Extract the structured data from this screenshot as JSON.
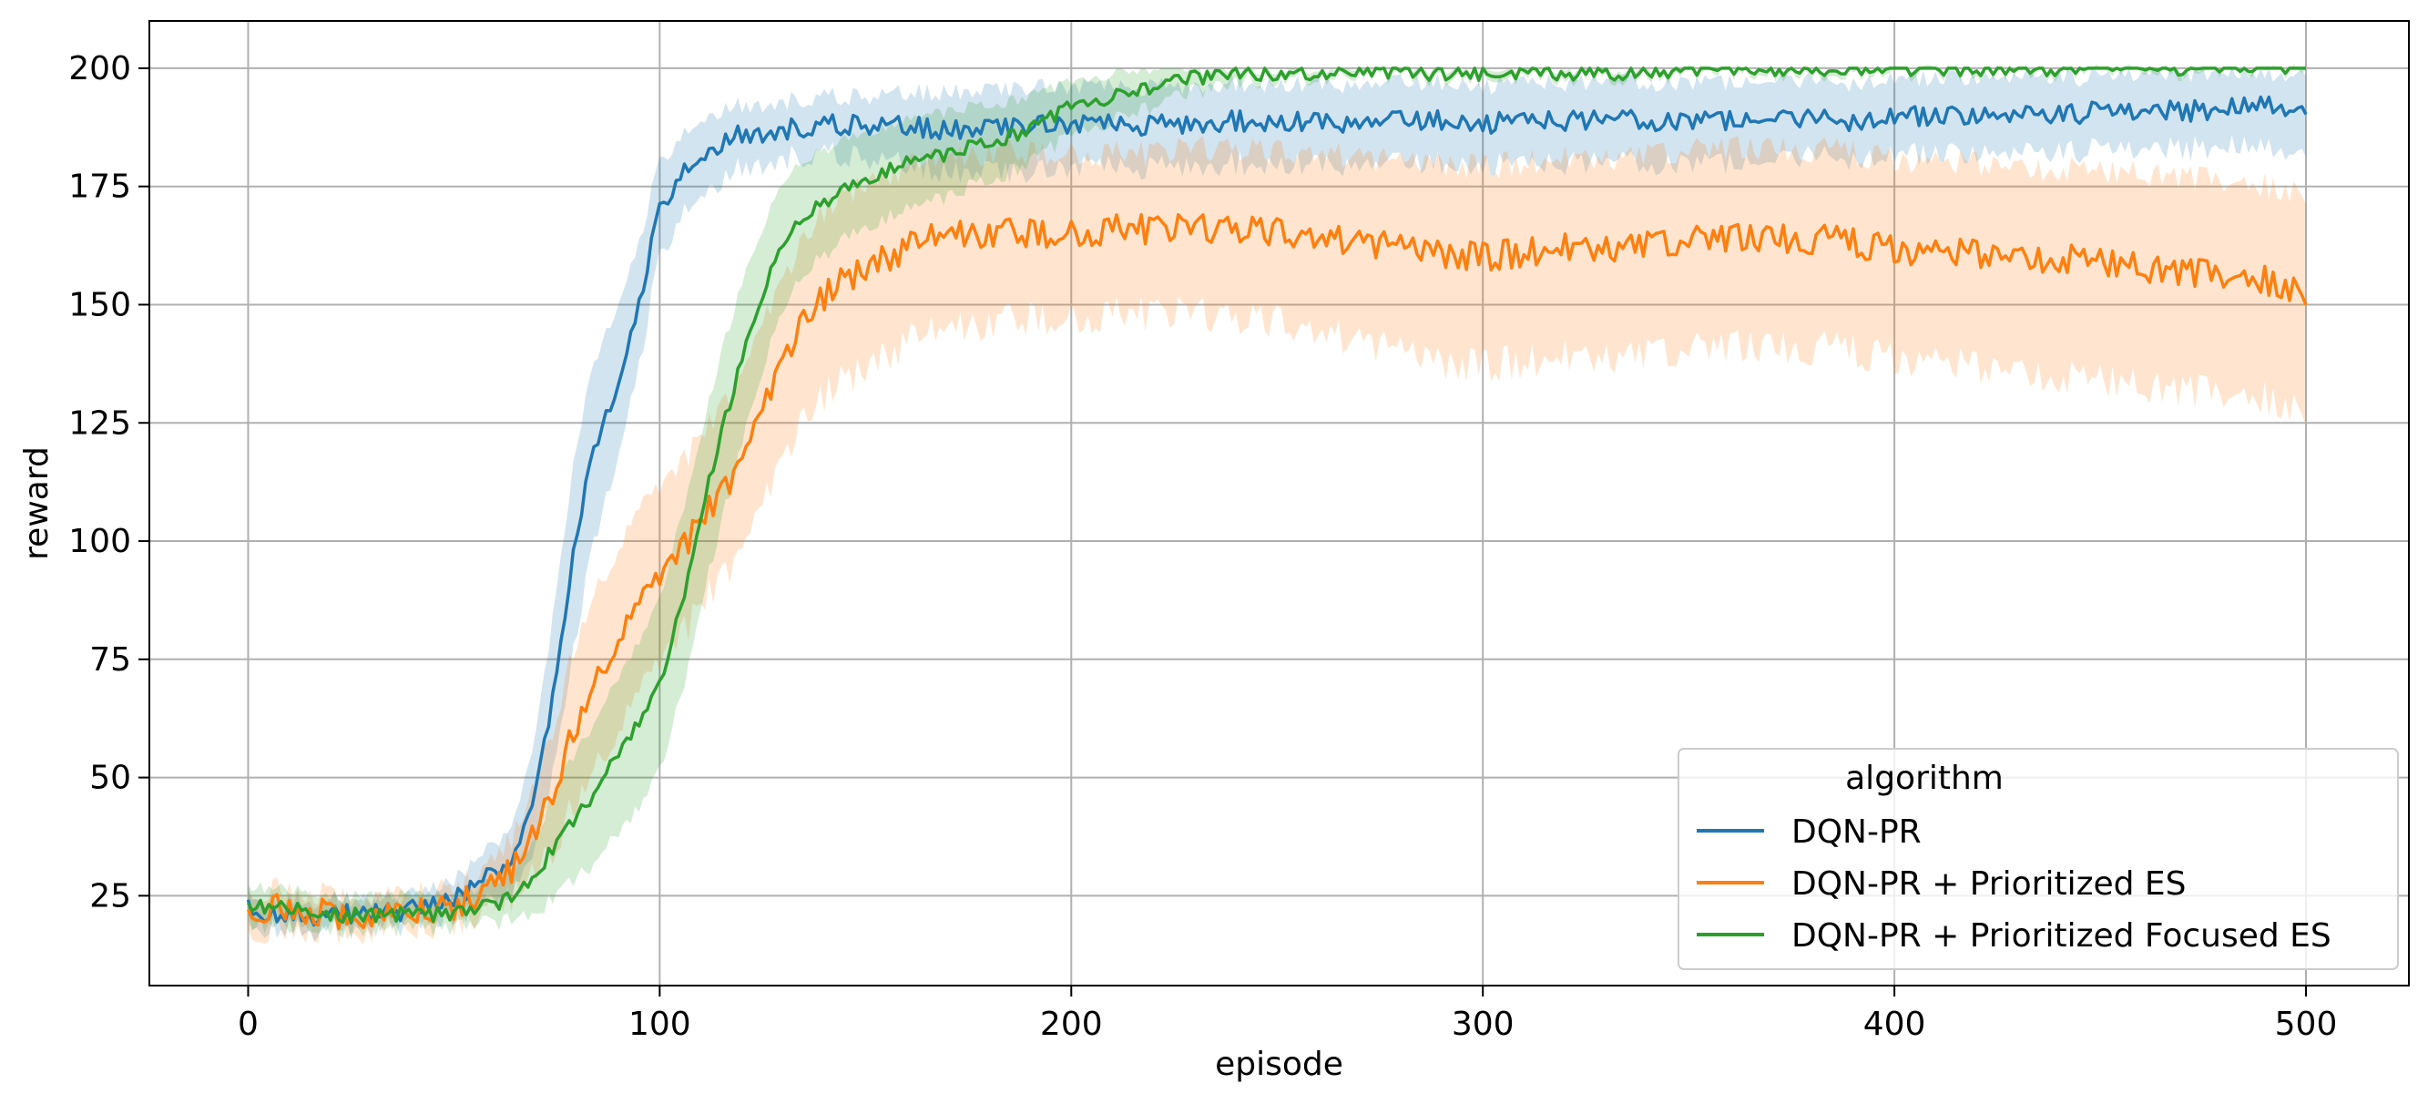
{
  "chart_data": {
    "type": "line",
    "xlabel": "episode",
    "ylabel": "reward",
    "xlim": [
      -24,
      525
    ],
    "ylim": [
      6,
      210
    ],
    "xticks": [
      0,
      100,
      200,
      300,
      400,
      500
    ],
    "yticks": [
      25,
      50,
      75,
      100,
      125,
      150,
      175,
      200
    ],
    "grid": true,
    "legend": {
      "title": "algorithm",
      "placement": "lower-right"
    },
    "series": [
      {
        "name": "DQN-PR",
        "color": "#1f77b4",
        "x": [
          0,
          10,
          20,
          30,
          40,
          50,
          55,
          60,
          65,
          70,
          75,
          80,
          85,
          90,
          95,
          100,
          105,
          110,
          115,
          120,
          130,
          140,
          150,
          160,
          170,
          180,
          190,
          200,
          210,
          220,
          230,
          240,
          250,
          260,
          270,
          280,
          290,
          300,
          310,
          320,
          330,
          340,
          350,
          360,
          370,
          380,
          390,
          400,
          410,
          420,
          430,
          440,
          450,
          460,
          470,
          480,
          490,
          500
        ],
        "y": [
          22,
          21,
          21,
          21,
          22,
          24,
          27,
          30,
          34,
          48,
          72,
          103,
          122,
          133,
          150,
          170,
          177,
          180,
          184,
          186,
          187,
          188,
          188,
          188,
          187,
          187,
          188,
          188,
          188,
          188,
          188,
          189,
          188,
          189,
          188,
          189,
          189,
          188,
          190,
          189,
          189,
          189,
          189,
          189,
          189,
          189,
          189,
          190,
          190,
          190,
          190,
          190,
          191,
          191,
          191,
          191,
          193,
          191
        ],
        "lower": [
          19,
          18,
          18,
          18,
          19,
          20,
          22,
          24,
          27,
          36,
          55,
          82,
          103,
          118,
          137,
          160,
          168,
          172,
          176,
          179,
          181,
          182,
          181,
          180,
          178,
          178,
          178,
          179,
          179,
          179,
          179,
          180,
          179,
          180,
          179,
          180,
          180,
          179,
          181,
          180,
          180,
          180,
          180,
          180,
          180,
          181,
          181,
          182,
          182,
          182,
          182,
          182,
          183,
          183,
          183,
          183,
          184,
          182
        ],
        "upper": [
          25,
          24,
          24,
          24,
          25,
          28,
          32,
          36,
          42,
          60,
          90,
          122,
          140,
          150,
          163,
          180,
          185,
          188,
          191,
          192,
          193,
          194,
          194,
          195,
          195,
          195,
          196,
          196,
          196,
          196,
          196,
          197,
          196,
          197,
          196,
          197,
          197,
          196,
          198,
          197,
          197,
          197,
          197,
          197,
          197,
          197,
          197,
          198,
          198,
          198,
          198,
          198,
          198,
          199,
          199,
          199,
          199,
          199
        ]
      },
      {
        "name": "DQN-PR + Prioritized ES",
        "color": "#ff7f0e",
        "x": [
          0,
          10,
          20,
          30,
          40,
          50,
          55,
          60,
          65,
          70,
          75,
          80,
          85,
          90,
          95,
          100,
          105,
          110,
          115,
          120,
          125,
          130,
          135,
          140,
          150,
          160,
          170,
          180,
          190,
          200,
          210,
          220,
          230,
          240,
          250,
          260,
          270,
          280,
          290,
          300,
          310,
          320,
          330,
          340,
          350,
          360,
          370,
          380,
          390,
          400,
          410,
          420,
          430,
          440,
          450,
          460,
          470,
          480,
          490,
          500
        ],
        "y": [
          23,
          22,
          21,
          21,
          22,
          23,
          25,
          28,
          31,
          38,
          50,
          62,
          72,
          80,
          86,
          92,
          98,
          104,
          110,
          118,
          128,
          138,
          146,
          152,
          158,
          162,
          165,
          165,
          165,
          165,
          166,
          166,
          166,
          166,
          165,
          164,
          163,
          162,
          161,
          160,
          161,
          162,
          162,
          163,
          164,
          164,
          164,
          164,
          163,
          162,
          161,
          161,
          160,
          160,
          159,
          158,
          157,
          156,
          155,
          153
        ],
        "lower": [
          19,
          18,
          18,
          18,
          19,
          20,
          21,
          23,
          25,
          29,
          37,
          46,
          54,
          61,
          67,
          74,
          80,
          86,
          92,
          99,
          108,
          117,
          125,
          131,
          137,
          142,
          145,
          146,
          147,
          147,
          148,
          148,
          148,
          147,
          146,
          144,
          142,
          140,
          138,
          137,
          138,
          139,
          139,
          140,
          141,
          141,
          141,
          141,
          140,
          139,
          138,
          137,
          136,
          135,
          134,
          133,
          132,
          131,
          130,
          128
        ],
        "upper": [
          27,
          26,
          25,
          25,
          26,
          27,
          29,
          33,
          38,
          48,
          64,
          80,
          91,
          99,
          106,
          111,
          116,
          122,
          128,
          136,
          146,
          155,
          163,
          170,
          176,
          179,
          181,
          182,
          182,
          182,
          182,
          182,
          183,
          183,
          182,
          182,
          181,
          180,
          180,
          179,
          180,
          181,
          181,
          182,
          183,
          183,
          183,
          183,
          182,
          181,
          180,
          180,
          179,
          179,
          178,
          178,
          177,
          176,
          175,
          174
        ]
      },
      {
        "name": "DQN-PR + Prioritized Focused ES",
        "color": "#2ca02c",
        "x": [
          0,
          10,
          20,
          30,
          40,
          50,
          55,
          60,
          65,
          70,
          75,
          80,
          85,
          90,
          95,
          100,
          105,
          110,
          115,
          120,
          125,
          130,
          135,
          140,
          150,
          160,
          170,
          180,
          190,
          200,
          210,
          220,
          230,
          240,
          250,
          260,
          270,
          280,
          290,
          300,
          310,
          320,
          330,
          340,
          350,
          360,
          370,
          380,
          390,
          400,
          410,
          420,
          430,
          440,
          450,
          460,
          470,
          480,
          490,
          500
        ],
        "y": [
          23,
          22,
          21,
          21,
          21,
          21,
          22,
          23,
          25,
          30,
          36,
          42,
          48,
          55,
          62,
          70,
          85,
          105,
          123,
          138,
          152,
          163,
          168,
          172,
          176,
          180,
          182,
          184,
          187,
          192,
          194,
          196,
          198,
          199,
          199,
          199,
          199,
          199,
          199,
          199,
          199,
          199,
          199,
          199,
          200,
          200,
          200,
          200,
          200,
          200,
          200,
          200,
          200,
          200,
          200,
          200,
          200,
          200,
          200,
          200
        ],
        "lower": [
          19,
          18,
          18,
          18,
          18,
          18,
          19,
          19,
          20,
          22,
          25,
          29,
          33,
          38,
          44,
          52,
          66,
          86,
          104,
          120,
          136,
          149,
          156,
          161,
          166,
          170,
          173,
          176,
          180,
          186,
          189,
          192,
          195,
          197,
          198,
          198,
          198,
          198,
          198,
          198,
          198,
          198,
          198,
          198,
          199,
          199,
          199,
          199,
          199,
          199,
          199,
          199,
          199,
          199,
          199,
          199,
          199,
          199,
          199,
          199
        ],
        "upper": [
          27,
          26,
          25,
          25,
          25,
          25,
          26,
          28,
          31,
          38,
          48,
          56,
          63,
          71,
          79,
          88,
          104,
          122,
          140,
          154,
          166,
          176,
          180,
          183,
          186,
          189,
          191,
          192,
          194,
          197,
          199,
          200,
          200,
          200,
          200,
          200,
          200,
          200,
          200,
          200,
          200,
          200,
          200,
          200,
          200,
          200,
          200,
          200,
          200,
          200,
          200,
          200,
          200,
          200,
          200,
          200,
          200,
          200,
          200,
          200
        ]
      }
    ]
  }
}
